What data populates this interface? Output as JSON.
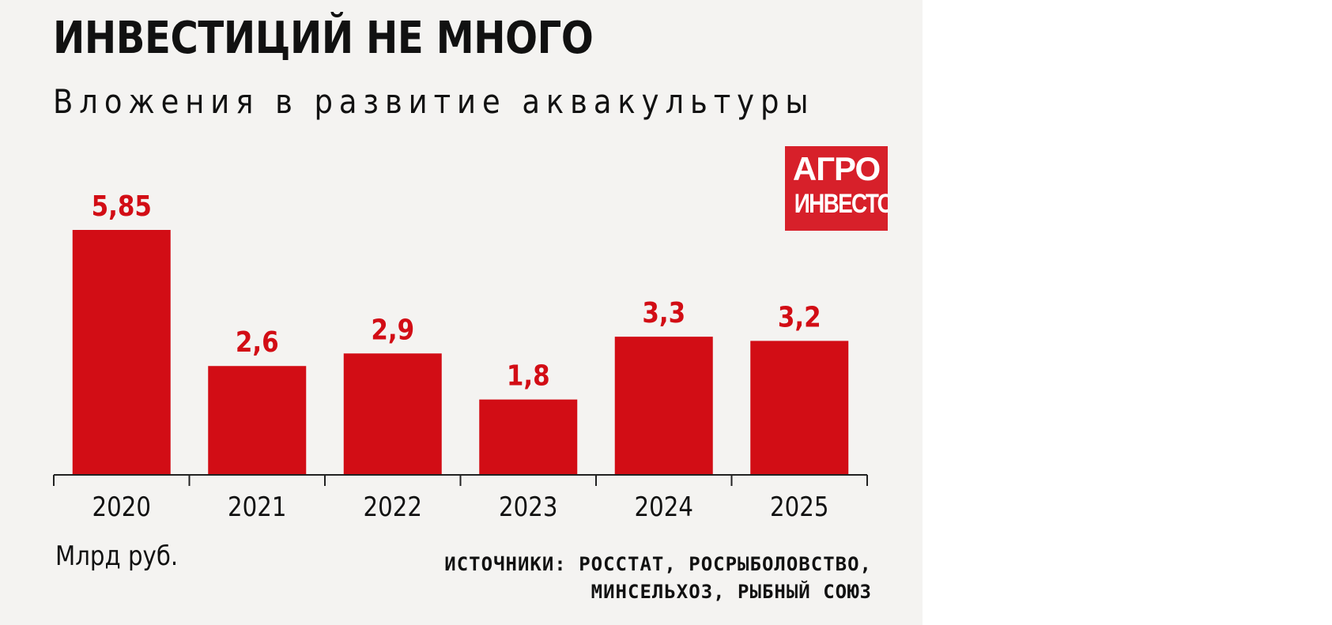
{
  "title": "ИНВЕСТИЦИЙ НЕ МНОГО",
  "subtitle": "Вложения в развитие аквакультуры",
  "logo": {
    "line1": "АГРО",
    "line2": "ИНВЕСТОР"
  },
  "unit": "Млрд руб.",
  "sources": [
    "ИСТОЧНИКИ: РОССТАТ, РОСРЫБОЛОВСТВО,",
    "МИНСЕЛЬХОЗ, РЫБНЫЙ СОЮЗ"
  ],
  "colors": {
    "bar": "#d20d15",
    "value_label": "#d20d15",
    "axis": "#222222",
    "background": "#f4f3f1",
    "logo": "#d7202a"
  },
  "chart_data": {
    "type": "bar",
    "title": "ИНВЕСТИЦИЙ НЕ МНОГО",
    "subtitle": "Вложения в развитие аквакультуры",
    "categories": [
      "2020",
      "2021",
      "2022",
      "2023",
      "2024",
      "2025"
    ],
    "values": [
      5.85,
      2.6,
      2.9,
      1.8,
      3.3,
      3.2
    ],
    "value_labels": [
      "5,85",
      "2,6",
      "2,9",
      "1,8",
      "3,3",
      "3,2"
    ],
    "ylabel": "Млрд руб.",
    "ylim": [
      0,
      5.85
    ],
    "grid": false,
    "legend": "none"
  }
}
